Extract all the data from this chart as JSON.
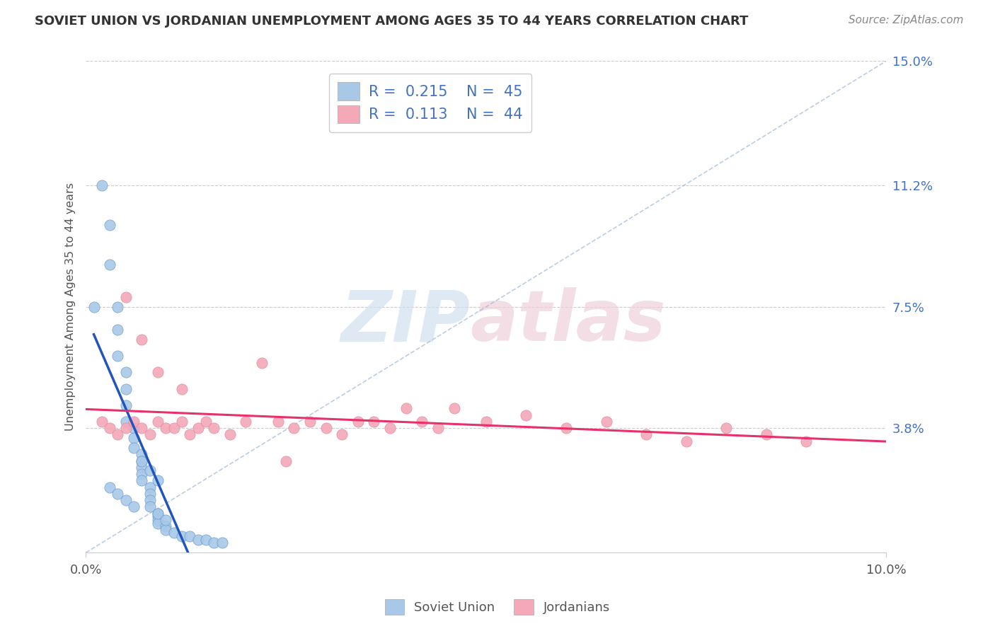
{
  "title": "SOVIET UNION VS JORDANIAN UNEMPLOYMENT AMONG AGES 35 TO 44 YEARS CORRELATION CHART",
  "source": "Source: ZipAtlas.com",
  "ylabel": "Unemployment Among Ages 35 to 44 years",
  "xlim": [
    0.0,
    0.1
  ],
  "ylim": [
    0.0,
    0.15
  ],
  "xticks": [
    0.0,
    0.1
  ],
  "xticklabels": [
    "0.0%",
    "10.0%"
  ],
  "yticks": [
    0.0,
    0.038,
    0.075,
    0.112,
    0.15
  ],
  "yticklabels": [
    "",
    "3.8%",
    "7.5%",
    "11.2%",
    "15.0%"
  ],
  "soviet_color": "#a8c8e8",
  "jordan_color": "#f4a8b8",
  "soviet_line_color": "#2255bb",
  "jordan_line_color": "#e8306a",
  "diag_line_color": "#a0b8d8",
  "watermark_zip_color": "#d0e0f0",
  "watermark_atlas_color": "#f0d0da",
  "legend_labels_bottom": [
    "Soviet Union",
    "Jordanians"
  ],
  "legend_r1": "R =  0.215",
  "legend_n1": "N =  45",
  "legend_r2": "R =  0.113",
  "legend_n2": "N =  44",
  "grid_color": "#cccccc",
  "title_color": "#333333",
  "source_color": "#888888",
  "axis_label_color": "#555555",
  "ytick_color": "#4472c4",
  "xtick_color": "#555555",
  "soviet_x": [
    0.001,
    0.002,
    0.003,
    0.003,
    0.004,
    0.004,
    0.004,
    0.005,
    0.005,
    0.005,
    0.005,
    0.006,
    0.006,
    0.006,
    0.007,
    0.007,
    0.007,
    0.007,
    0.007,
    0.008,
    0.008,
    0.008,
    0.008,
    0.009,
    0.009,
    0.009,
    0.009,
    0.01,
    0.01,
    0.011,
    0.012,
    0.013,
    0.014,
    0.015,
    0.016,
    0.017,
    0.003,
    0.004,
    0.005,
    0.006,
    0.009,
    0.01,
    0.007,
    0.008,
    0.009
  ],
  "soviet_y": [
    0.075,
    0.112,
    0.1,
    0.088,
    0.075,
    0.068,
    0.06,
    0.055,
    0.05,
    0.045,
    0.04,
    0.038,
    0.035,
    0.032,
    0.03,
    0.028,
    0.026,
    0.024,
    0.022,
    0.02,
    0.018,
    0.016,
    0.014,
    0.012,
    0.011,
    0.01,
    0.009,
    0.008,
    0.007,
    0.006,
    0.005,
    0.005,
    0.004,
    0.004,
    0.003,
    0.003,
    0.02,
    0.018,
    0.016,
    0.014,
    0.012,
    0.01,
    0.028,
    0.025,
    0.022
  ],
  "jordan_x": [
    0.002,
    0.003,
    0.004,
    0.005,
    0.006,
    0.007,
    0.008,
    0.009,
    0.01,
    0.011,
    0.012,
    0.013,
    0.014,
    0.015,
    0.016,
    0.018,
    0.02,
    0.022,
    0.024,
    0.026,
    0.028,
    0.03,
    0.032,
    0.034,
    0.036,
    0.038,
    0.04,
    0.042,
    0.044,
    0.046,
    0.05,
    0.055,
    0.06,
    0.065,
    0.07,
    0.075,
    0.08,
    0.085,
    0.09,
    0.005,
    0.007,
    0.009,
    0.012,
    0.025
  ],
  "jordan_y": [
    0.04,
    0.038,
    0.036,
    0.038,
    0.04,
    0.038,
    0.036,
    0.04,
    0.038,
    0.038,
    0.04,
    0.036,
    0.038,
    0.04,
    0.038,
    0.036,
    0.04,
    0.058,
    0.04,
    0.038,
    0.04,
    0.038,
    0.036,
    0.04,
    0.04,
    0.038,
    0.044,
    0.04,
    0.038,
    0.044,
    0.04,
    0.042,
    0.038,
    0.04,
    0.036,
    0.034,
    0.038,
    0.036,
    0.034,
    0.078,
    0.065,
    0.055,
    0.05,
    0.028
  ]
}
